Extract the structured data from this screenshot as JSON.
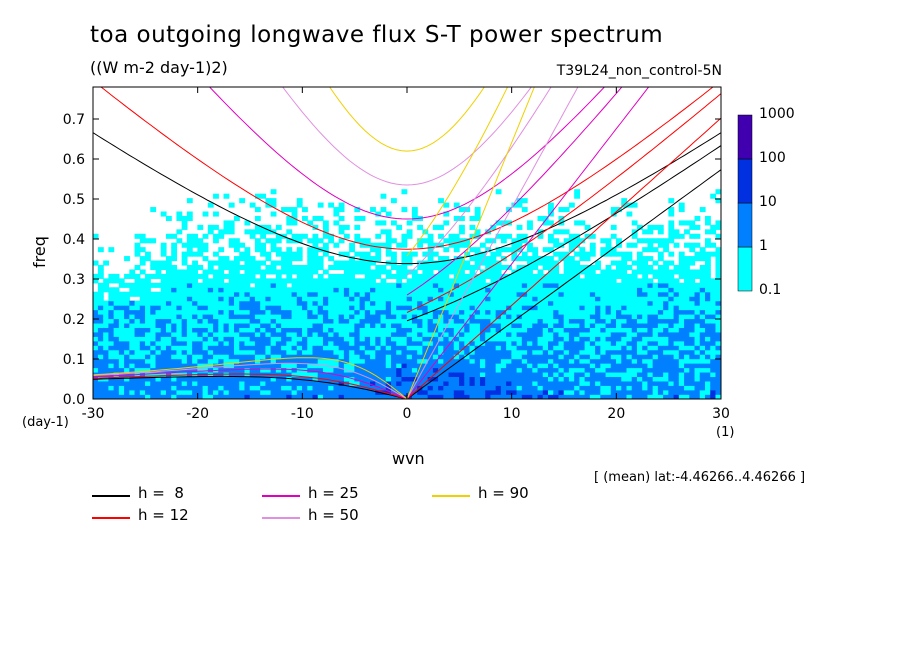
{
  "chart_data": {
    "type": "heatmap",
    "title": "toa outgoing longwave flux S-T power spectrum",
    "units": "((W m-2 day-1)2)",
    "run": "T39L24_non_control-5N",
    "xlabel": "wvn",
    "ylabel": "freq",
    "x_unit_label": "(day-1)",
    "x_unit_label_right": "(1)",
    "xlim": [
      -30,
      30
    ],
    "ylim": [
      0,
      0.78
    ],
    "xticks": [
      -30,
      -20,
      -10,
      0,
      10,
      20,
      30
    ],
    "xtick_labels": [
      "-30",
      "-20",
      "-10",
      "0",
      "10",
      "20",
      "30"
    ],
    "yticks": [
      0.0,
      0.1,
      0.2,
      0.3,
      0.4,
      0.5,
      0.6,
      0.7
    ],
    "ytick_labels": [
      "0.0",
      "0.1",
      "0.2",
      "0.3",
      "0.4",
      "0.5",
      "0.6",
      "0.7"
    ],
    "colorbar": {
      "levels": [
        0.1,
        1,
        10,
        100,
        1000
      ],
      "labels": [
        "0.1",
        "1",
        "10",
        "100",
        "1000"
      ],
      "colors": [
        "#00ffff",
        "#0080ff",
        "#0030e0",
        "#4000b0"
      ]
    },
    "lat_info": "[ (mean) lat:-4.46266..4.46266 ]",
    "dispersion_legend": [
      {
        "label": "h =  8",
        "h": 8,
        "color": "#000000"
      },
      {
        "label": "h = 12",
        "h": 12,
        "color": "#ff0000"
      },
      {
        "label": "h = 25",
        "h": 25,
        "color": "#e000c0"
      },
      {
        "label": "h = 50",
        "h": 50,
        "color": "#e090e0"
      },
      {
        "label": "h = 90",
        "h": 90,
        "color": "#f0d000"
      }
    ]
  }
}
